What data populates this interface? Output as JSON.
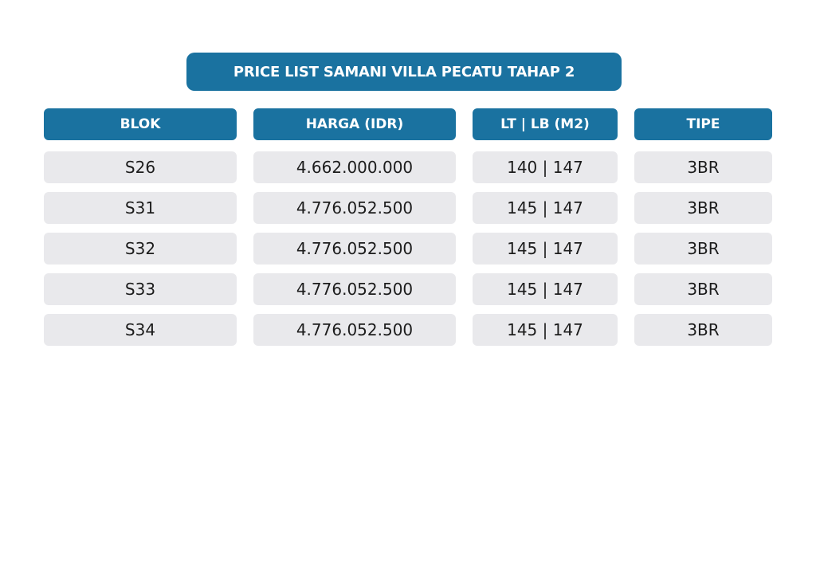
{
  "title": "PRICE LIST SAMANI VILLA PECATU TAHAP 2",
  "table": {
    "headers": [
      "BLOK",
      "HARGA (IDR)",
      "LT | LB (M2)",
      "TIPE"
    ],
    "rows": [
      [
        "S26",
        "4.662.000.000",
        "140 | 147",
        "3BR"
      ],
      [
        "S31",
        "4.776.052.500",
        "145 | 147",
        "3BR"
      ],
      [
        "S32",
        "4.776.052.500",
        "145 | 147",
        "3BR"
      ],
      [
        "S33",
        "4.776.052.500",
        "145 | 147",
        "3BR"
      ],
      [
        "S34",
        "4.776.052.500",
        "145 | 147",
        "3BR"
      ]
    ]
  },
  "colors": {
    "header_bg": "#1a72a0",
    "cell_bg": "#e9e9ec",
    "header_text": "#ffffff",
    "body_text": "#1c1c1c"
  }
}
